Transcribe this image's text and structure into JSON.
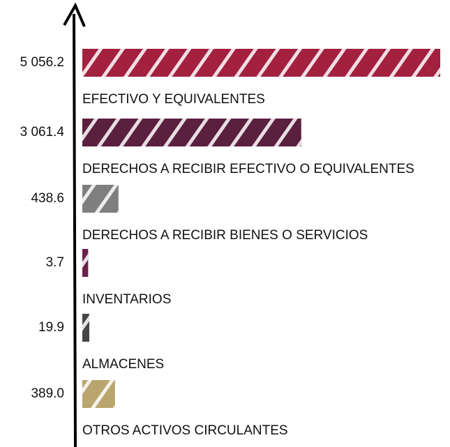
{
  "chart_data": {
    "type": "bar",
    "orientation": "horizontal",
    "categories": [
      "EFECTIVO Y EQUIVALENTES",
      "DERECHOS A RECIBIR EFECTIVO O EQUIVALENTES",
      "DERECHOS A RECIBIR BIENES O SERVICIOS",
      "INVENTARIOS",
      "ALMACENES",
      "OTROS ACTIVOS CIRCULANTES"
    ],
    "values": [
      5056.2,
      3061.4,
      438.6,
      3.7,
      19.9,
      389.0
    ],
    "value_labels": [
      "5 056.2",
      "3 061.4",
      "438.6",
      "3.7",
      "19.9",
      "389.0"
    ],
    "colors": [
      "#a3203f",
      "#5b1f3f",
      "#7f7f7f",
      "#6b1f4a",
      "#454545",
      "#b9a56d"
    ]
  }
}
